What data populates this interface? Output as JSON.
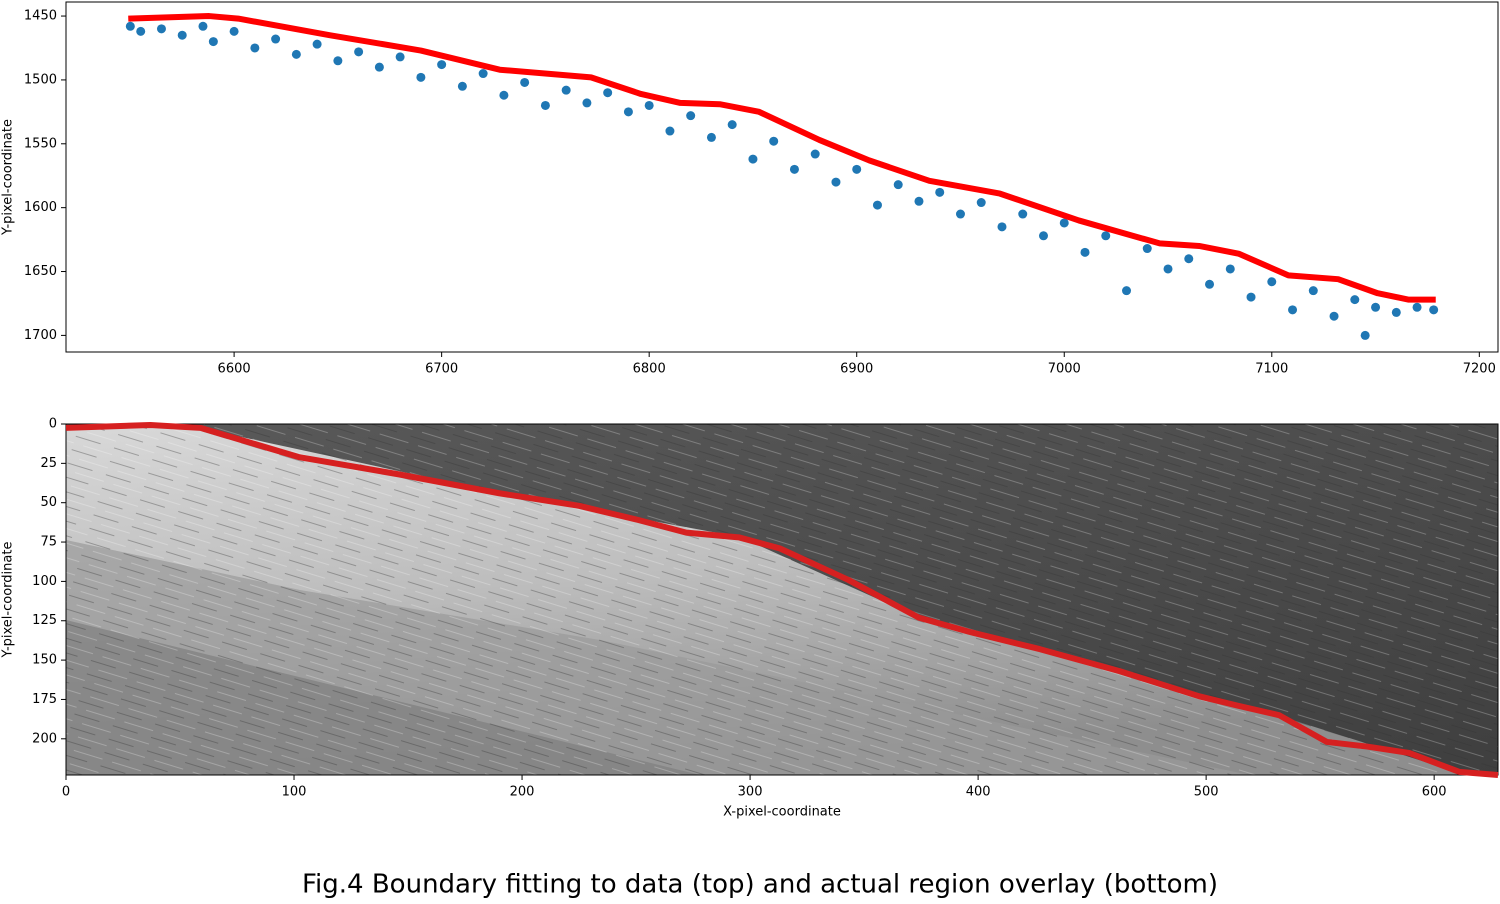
{
  "caption": "Fig.4 Boundary fitting to data (top) and actual region overlay (bottom)",
  "chart_data": [
    {
      "type": "scatter",
      "ylabel": "Y-pixel-coordinate",
      "xlim": [
        6519,
        7209
      ],
      "ylim": [
        1713,
        1439
      ],
      "xticks": [
        6600,
        6700,
        6800,
        6900,
        7000,
        7100,
        7200
      ],
      "yticks": [
        1450,
        1500,
        1550,
        1600,
        1650,
        1700
      ],
      "series": [
        {
          "kind": "scatter",
          "color": "#1f77b4",
          "x": [
            6550,
            6555,
            6565,
            6575,
            6585,
            6590,
            6600,
            6610,
            6620,
            6630,
            6640,
            6650,
            6660,
            6670,
            6680,
            6690,
            6700,
            6710,
            6720,
            6730,
            6740,
            6750,
            6760,
            6770,
            6780,
            6790,
            6800,
            6810,
            6820,
            6830,
            6840,
            6850,
            6860,
            6870,
            6880,
            6890,
            6900,
            6910,
            6920,
            6930,
            6940,
            6950,
            6960,
            6970,
            6980,
            6990,
            7000,
            7010,
            7020,
            7030,
            7040,
            7050,
            7060,
            7070,
            7080,
            7090,
            7100,
            7110,
            7120,
            7130,
            7140,
            7145,
            7150,
            7160,
            7170,
            7178
          ],
          "values": [
            1458,
            1462,
            1460,
            1465,
            1458,
            1470,
            1462,
            1475,
            1468,
            1480,
            1472,
            1485,
            1478,
            1490,
            1482,
            1498,
            1488,
            1505,
            1495,
            1512,
            1502,
            1520,
            1508,
            1518,
            1510,
            1525,
            1520,
            1540,
            1528,
            1545,
            1535,
            1562,
            1548,
            1570,
            1558,
            1580,
            1570,
            1598,
            1582,
            1595,
            1588,
            1605,
            1596,
            1615,
            1605,
            1622,
            1612,
            1635,
            1622,
            1665,
            1632,
            1648,
            1640,
            1660,
            1648,
            1670,
            1658,
            1680,
            1665,
            1685,
            1672,
            1700,
            1678,
            1682,
            1678,
            1680
          ]
        },
        {
          "kind": "line",
          "color": "#ff0000",
          "x": [
            6549,
            6588,
            6602,
            6646,
            6690,
            6728,
            6772,
            6796,
            6815,
            6834,
            6853,
            6882,
            6906,
            6935,
            6969,
            7007,
            7046,
            7065,
            7084,
            7108,
            7132,
            7151,
            7166,
            7179
          ],
          "values": [
            1452,
            1450,
            1452,
            1465,
            1477,
            1492,
            1498,
            1511,
            1518,
            1519,
            1525,
            1547,
            1563,
            1579,
            1589,
            1610,
            1628,
            1630,
            1636,
            1653,
            1656,
            1667,
            1672,
            1672
          ]
        }
      ]
    },
    {
      "type": "image",
      "xlabel": "X-pixel-coordinate",
      "ylabel": "Y-pixel-coordinate",
      "xlim": [
        0,
        628
      ],
      "ylim": [
        223,
        0
      ],
      "xticks": [
        0,
        100,
        200,
        300,
        400,
        500,
        600
      ],
      "yticks": [
        0,
        25,
        50,
        75,
        100,
        125,
        150,
        175,
        200
      ],
      "series": [
        {
          "kind": "line",
          "color": "#d62020",
          "x": [
            0,
            37,
            59,
            102,
            146,
            190,
            225,
            251,
            272,
            295,
            313,
            343,
            374,
            396,
            427,
            462,
            497,
            514,
            532,
            553,
            571,
            589,
            611,
            628
          ],
          "values": [
            2.5,
            0.6,
            2.5,
            21,
            32,
            44,
            52,
            61,
            69,
            72,
            79,
            99,
            123,
            132,
            143,
            157,
            173,
            179,
            185,
            202,
            205,
            209,
            221,
            223
          ]
        }
      ]
    }
  ]
}
